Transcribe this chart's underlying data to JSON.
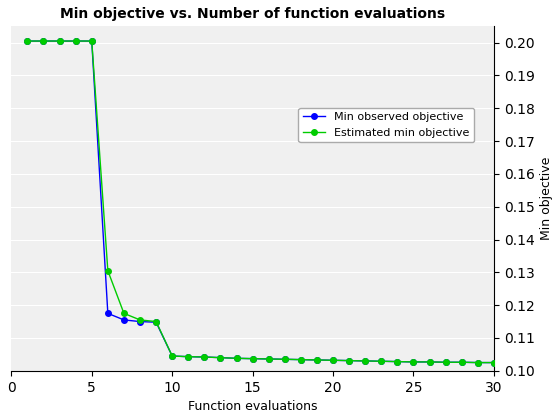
{
  "title": "Min objective vs. Number of function evaluations",
  "xlabel": "Function evaluations",
  "ylabel": "Min objective",
  "xlim": [
    0,
    30
  ],
  "ylim": [
    0.1,
    0.205
  ],
  "yticks": [
    0.1,
    0.11,
    0.12,
    0.13,
    0.14,
    0.15,
    0.16,
    0.17,
    0.18,
    0.19,
    0.2
  ],
  "xticks": [
    0,
    5,
    10,
    15,
    20,
    25,
    30
  ],
  "blue_line": {
    "label": "Min observed objective",
    "color": "#0000ff",
    "marker": "o",
    "markersize": 4,
    "x": [
      1,
      2,
      3,
      4,
      5,
      6,
      7,
      8,
      9,
      10,
      11,
      12,
      13,
      14,
      15,
      16,
      17,
      18,
      19,
      20,
      21,
      22,
      23,
      24,
      25,
      26,
      27,
      28,
      29,
      30
    ],
    "y": [
      0.2005,
      0.2005,
      0.2005,
      0.2005,
      0.2005,
      0.1175,
      0.1155,
      0.115,
      0.1148,
      0.1045,
      0.1043,
      0.1042,
      0.104,
      0.1038,
      0.1037,
      0.1036,
      0.1035,
      0.1034,
      0.1033,
      0.1032,
      0.1031,
      0.103,
      0.1029,
      0.1028,
      0.1027,
      0.1027,
      0.1026,
      0.1026,
      0.1025,
      0.1025
    ]
  },
  "green_line": {
    "label": "Estimated min objective",
    "color": "#00cc00",
    "marker": "o",
    "markersize": 4,
    "x": [
      1,
      2,
      3,
      4,
      5,
      6,
      7,
      8,
      9,
      10,
      11,
      12,
      13,
      14,
      15,
      16,
      17,
      18,
      19,
      20,
      21,
      22,
      23,
      24,
      25,
      26,
      27,
      28,
      29,
      30
    ],
    "y": [
      0.2005,
      0.2005,
      0.2005,
      0.2005,
      0.2005,
      0.1305,
      0.1175,
      0.1155,
      0.115,
      0.1045,
      0.1043,
      0.1042,
      0.104,
      0.1038,
      0.1037,
      0.1036,
      0.1035,
      0.1034,
      0.1033,
      0.1032,
      0.1031,
      0.103,
      0.1029,
      0.1028,
      0.1027,
      0.1027,
      0.1026,
      0.1026,
      0.1025,
      0.1025
    ]
  },
  "panel_color": "#f0f0f0",
  "background_color": "#ffffff"
}
